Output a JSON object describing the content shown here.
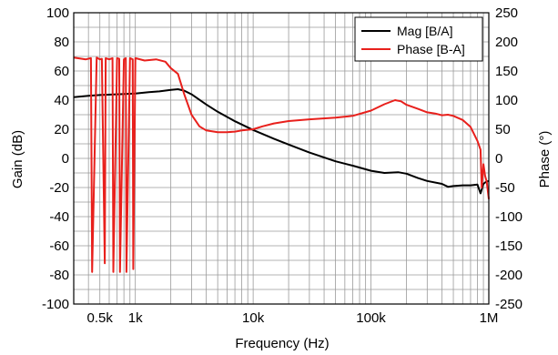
{
  "chart_data": {
    "type": "line",
    "title": "",
    "xlabel": "Frequency (Hz)",
    "ylabel": "Gain (dB)",
    "y2label": "Phase (°)",
    "xscale": "log",
    "xlim": [
      300,
      1000000
    ],
    "ylim": [
      -100,
      100
    ],
    "y2lim": [
      -250,
      250
    ],
    "grid": true,
    "legend_position": "top-right",
    "x_ticks": [
      {
        "value": 500,
        "label": "0.5k"
      },
      {
        "value": 1000,
        "label": "1k"
      },
      {
        "value": 10000,
        "label": "10k"
      },
      {
        "value": 100000,
        "label": "100k"
      },
      {
        "value": 1000000,
        "label": "1M"
      }
    ],
    "y_ticks": [
      {
        "value": 100,
        "label": "100"
      },
      {
        "value": 80,
        "label": "80"
      },
      {
        "value": 60,
        "label": "60"
      },
      {
        "value": 40,
        "label": "40"
      },
      {
        "value": 20,
        "label": "20"
      },
      {
        "value": 0,
        "label": "0"
      },
      {
        "value": -20,
        "label": "-20"
      },
      {
        "value": -40,
        "label": "-40"
      },
      {
        "value": -60,
        "label": "-60"
      },
      {
        "value": -80,
        "label": "-80"
      },
      {
        "value": -100,
        "label": "-100"
      }
    ],
    "y2_ticks": [
      {
        "value": 250,
        "label": "250"
      },
      {
        "value": 200,
        "label": "200"
      },
      {
        "value": 150,
        "label": "150"
      },
      {
        "value": 100,
        "label": "100"
      },
      {
        "value": 50,
        "label": "50"
      },
      {
        "value": 0,
        "label": "0"
      },
      {
        "value": -50,
        "label": "-50"
      },
      {
        "value": -100,
        "label": "-100"
      },
      {
        "value": -150,
        "label": "-150"
      },
      {
        "value": -200,
        "label": "-200"
      },
      {
        "value": -250,
        "label": "-250"
      }
    ],
    "series": [
      {
        "name": "Mag [B/A]",
        "color": "#000000",
        "axis": "left",
        "x": [
          300,
          400,
          500,
          700,
          1000,
          1300,
          1600,
          2000,
          2300,
          2600,
          3000,
          4000,
          5000,
          7000,
          10000,
          15000,
          20000,
          30000,
          50000,
          70000,
          100000,
          130000,
          170000,
          200000,
          250000,
          300000,
          400000,
          450000,
          500000,
          600000,
          700000,
          800000,
          850000,
          900000,
          950000,
          1000000
        ],
        "y": [
          42,
          43,
          43.5,
          44,
          44.5,
          45.5,
          46,
          47,
          47.5,
          46.5,
          44,
          37,
          32,
          25.5,
          19.5,
          13.5,
          9.5,
          4,
          -2,
          -5,
          -8.5,
          -10,
          -9.5,
          -10.5,
          -13.5,
          -15.5,
          -17.5,
          -19.5,
          -19,
          -18.5,
          -18.5,
          -18,
          -24,
          -17.5,
          -16,
          -15.5
        ]
      },
      {
        "name": "Phase [B-A]",
        "color": "#e8201c",
        "axis": "right",
        "x": [
          300,
          380,
          420,
          430,
          470,
          500,
          520,
          550,
          560,
          600,
          640,
          650,
          700,
          730,
          740,
          800,
          830,
          840,
          900,
          950,
          960,
          1000,
          1200,
          1500,
          1800,
          2000,
          2300,
          2600,
          3000,
          3500,
          4000,
          5000,
          6000,
          7000,
          8000,
          10000,
          12000,
          15000,
          20000,
          30000,
          50000,
          70000,
          100000,
          130000,
          160000,
          180000,
          200000,
          250000,
          300000,
          350000,
          400000,
          450000,
          500000,
          600000,
          700000,
          800000,
          850000,
          870000,
          900000,
          930000,
          960000,
          1000000
        ],
        "y": [
          173,
          170,
          172,
          -195,
          173,
          170,
          171,
          -180,
          172,
          170,
          172,
          -195,
          172,
          171,
          -195,
          170,
          172,
          -195,
          172,
          170,
          -190,
          172,
          168,
          170,
          166,
          155,
          145,
          110,
          75,
          55,
          48,
          45,
          45,
          46,
          48,
          50,
          55,
          60,
          64,
          67,
          70,
          73,
          82,
          93,
          100,
          98,
          92,
          85,
          79,
          77,
          74,
          75,
          73,
          66,
          54,
          30,
          15,
          -50,
          -10,
          -30,
          -40,
          -70
        ]
      }
    ]
  }
}
